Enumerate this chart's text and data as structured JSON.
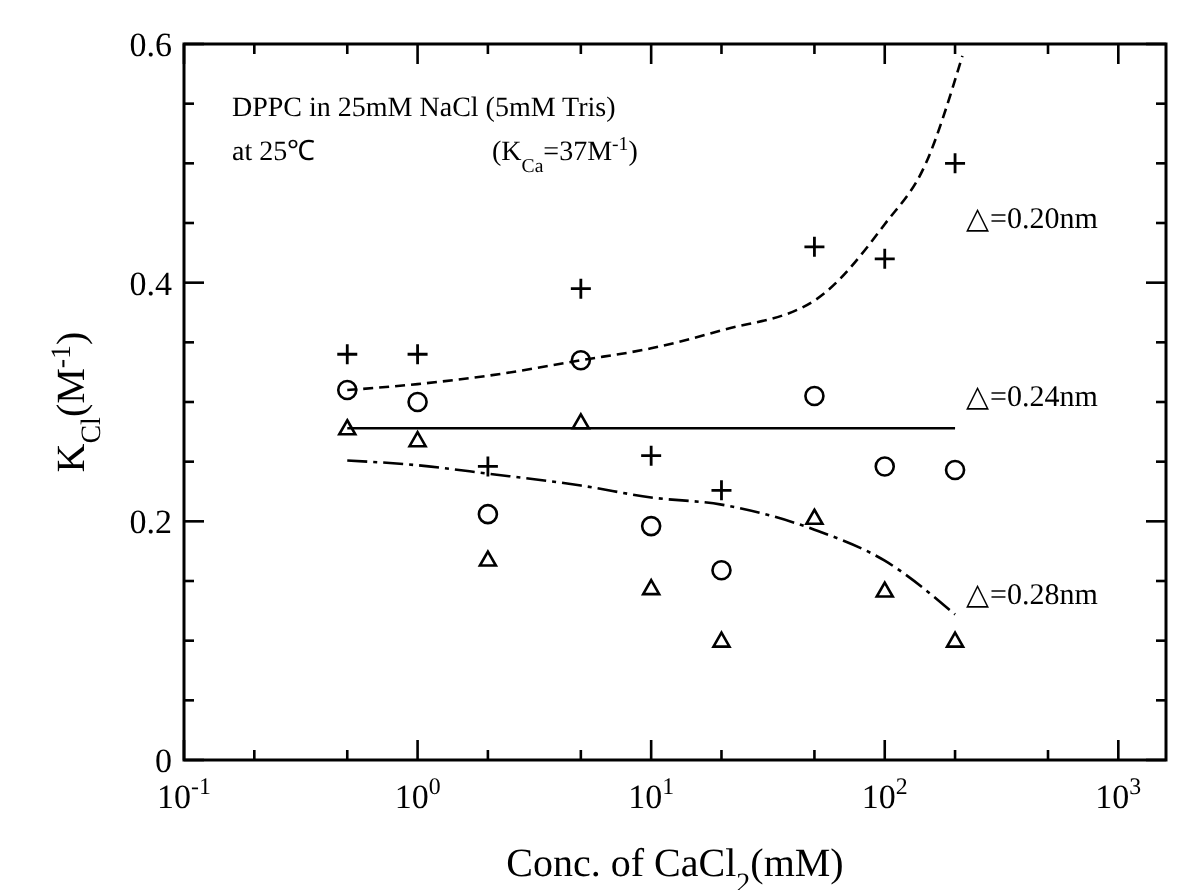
{
  "chart_data": {
    "type": "scatter",
    "xlabel": "Conc. of CaCl$_{2}$(mM)",
    "ylabel": "K$_{Cl}$(M$^{-1}$)",
    "log": "x",
    "xlim": [
      0.1,
      1600
    ],
    "ylim": [
      0,
      0.6
    ],
    "xticks": [
      {
        "value": 0.1,
        "label": "10$^{-1}$"
      },
      {
        "value": 0.2,
        "label": null
      },
      {
        "value": 0.5,
        "label": null
      },
      {
        "value": 1,
        "label": "10$^{0}$"
      },
      {
        "value": 2,
        "label": null
      },
      {
        "value": 5,
        "label": null
      },
      {
        "value": 10,
        "label": "10$^{1}$"
      },
      {
        "value": 20,
        "label": null
      },
      {
        "value": 50,
        "label": null
      },
      {
        "value": 100,
        "label": "10$^{2}$"
      },
      {
        "value": 200,
        "label": null
      },
      {
        "value": 500,
        "label": null
      },
      {
        "value": 1000,
        "label": "10$^{3}$"
      }
    ],
    "yticks": [
      0,
      {
        "value": 0.05,
        "label": null
      },
      {
        "value": 0.1,
        "label": null
      },
      {
        "value": 0.15,
        "label": null
      },
      0.2,
      {
        "value": 0.25,
        "label": null
      },
      {
        "value": 0.3,
        "label": null
      },
      {
        "value": 0.35,
        "label": null
      },
      0.4,
      {
        "value": 0.45,
        "label": null
      },
      {
        "value": 0.5,
        "label": null
      },
      {
        "value": 0.55,
        "label": null
      },
      0.6
    ],
    "grid": false,
    "series": [
      {
        "marker": "cross",
        "color": "#000000",
        "x": [
          0.5,
          1,
          2,
          5,
          10,
          20,
          50,
          100,
          200
        ],
        "values": [
          0.34,
          0.34,
          0.246,
          0.395,
          0.255,
          0.226,
          0.43,
          0.42,
          0.5
        ]
      },
      {
        "marker": "circle",
        "color": "#000000",
        "x": [
          0.5,
          1,
          2,
          5,
          10,
          20,
          50,
          100,
          200
        ],
        "values": [
          0.31,
          0.3,
          0.206,
          0.335,
          0.196,
          0.159,
          0.305,
          0.246,
          0.243
        ]
      },
      {
        "marker": "triangle",
        "color": "#000000",
        "x": [
          0.5,
          1,
          2,
          5,
          10,
          20,
          50,
          100,
          200
        ],
        "values": [
          0.278,
          0.268,
          0.168,
          0.283,
          0.144,
          0.1,
          0.203,
          0.142,
          0.1
        ]
      },
      {
        "type": "line",
        "line_style": "dashed",
        "color": "#000000",
        "x": [
          0.5,
          1,
          2,
          5,
          10,
          20,
          50,
          100,
          150,
          215
        ],
        "values": [
          0.31,
          0.315,
          0.322,
          0.335,
          0.345,
          0.36,
          0.385,
          0.449,
          0.5,
          0.59
        ]
      },
      {
        "type": "line",
        "line_style": "solid",
        "color": "#000000",
        "x": [
          0.5,
          200
        ],
        "values": [
          0.278,
          0.278
        ]
      },
      {
        "type": "line",
        "line_style": "dashdot",
        "color": "#000000",
        "x": [
          0.5,
          1,
          2,
          5,
          10,
          20,
          50,
          100,
          200
        ],
        "values": [
          0.251,
          0.247,
          0.24,
          0.23,
          0.22,
          0.214,
          0.193,
          0.167,
          0.122
        ]
      }
    ],
    "annotations": [
      "DPPC in 25mM NaCl (5mM Tris)",
      "at 25℃",
      "(K$_{Ca}$=37M$^{-1}$)",
      "△=0.20nm",
      "△=0.24nm",
      "△=0.28nm"
    ]
  }
}
